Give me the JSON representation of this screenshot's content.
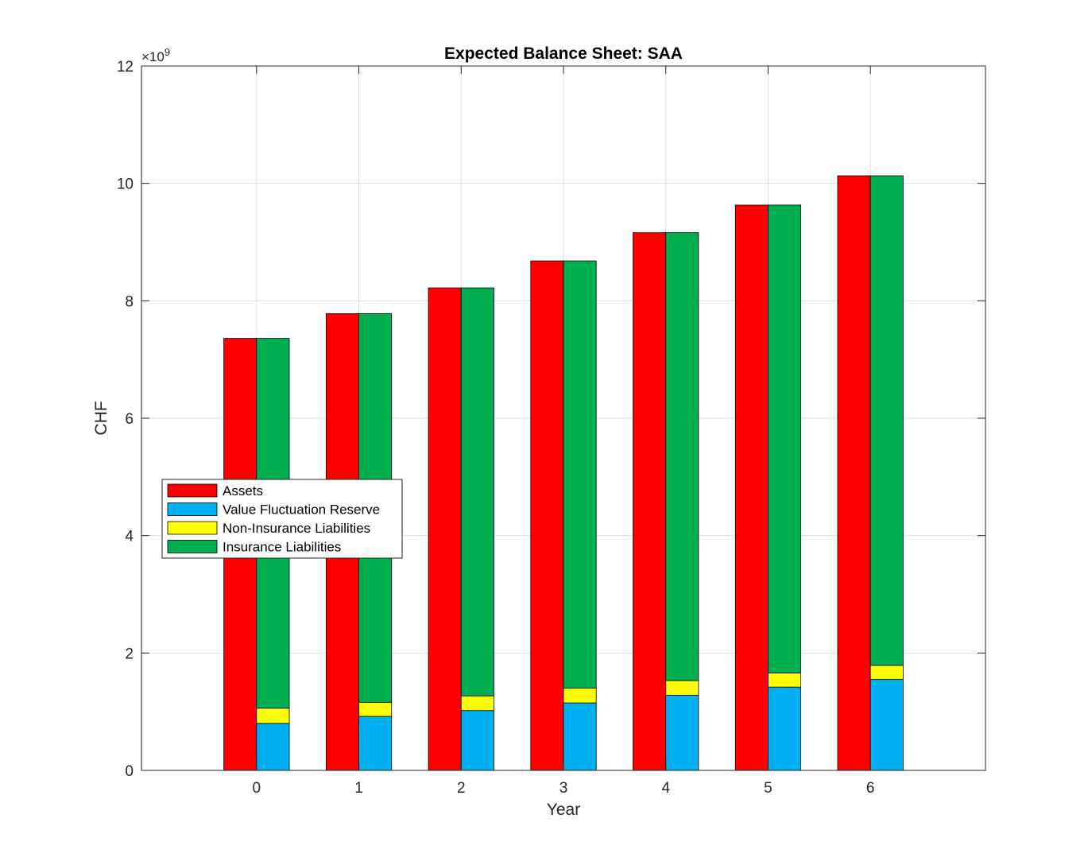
{
  "chart_data": {
    "type": "bar",
    "title": "Expected Balance Sheet: SAA",
    "xlabel": "Year",
    "ylabel": "CHF",
    "y_exponent_base": "×10",
    "y_exponent_power": "9",
    "categories": [
      "0",
      "1",
      "2",
      "3",
      "4",
      "5",
      "6"
    ],
    "xlim": [
      -1.125,
      7.125
    ],
    "ylim": [
      0,
      12
    ],
    "yticks": [
      "0",
      "2",
      "4",
      "6",
      "8",
      "10",
      "12"
    ],
    "ytick_values": [
      0,
      2,
      4,
      6,
      8,
      10,
      12
    ],
    "grid": true,
    "legend_position": "middle-left",
    "series": [
      {
        "name": "Assets",
        "color": "#ff0000",
        "values": [
          7.36,
          7.78,
          8.22,
          8.68,
          9.16,
          9.63,
          10.13
        ]
      },
      {
        "name": "Value Fluctuation Reserve",
        "color": "#00b0f0",
        "values": [
          0.8,
          0.92,
          1.02,
          1.15,
          1.28,
          1.42,
          1.55
        ]
      },
      {
        "name": "Non-Insurance Liabilities",
        "color": "#ffff00",
        "values": [
          0.26,
          0.24,
          0.25,
          0.25,
          0.25,
          0.24,
          0.24
        ]
      },
      {
        "name": "Insurance Liabilities",
        "color": "#00b050",
        "values": [
          6.3,
          6.62,
          6.95,
          7.28,
          7.63,
          7.97,
          8.34
        ]
      }
    ]
  }
}
